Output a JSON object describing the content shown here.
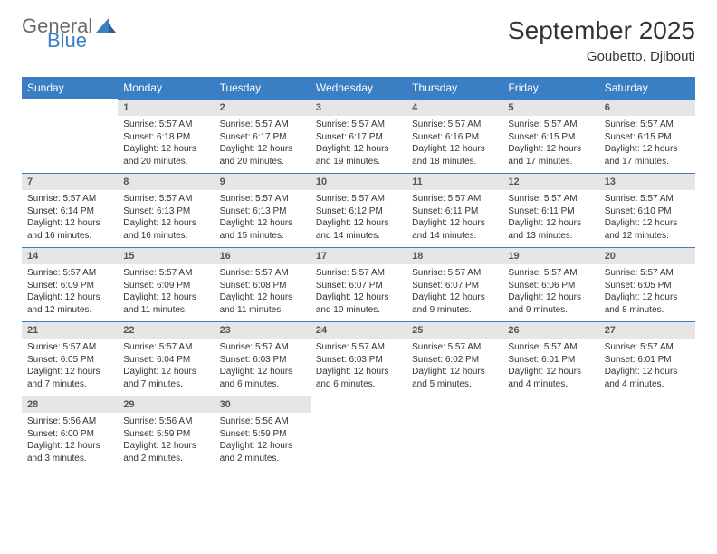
{
  "logo": {
    "text1": "General",
    "text2": "Blue",
    "gray": "#6b6b6b",
    "blue": "#3a7fc4"
  },
  "title": "September 2025",
  "location": "Goubetto, Djibouti",
  "colors": {
    "header_bg": "#3a7fc4",
    "header_fg": "#ffffff",
    "daynum_bg": "#e6e6e6",
    "daynum_fg": "#555555",
    "rule": "#3a7fc4",
    "body_bg": "#ffffff",
    "text": "#333333"
  },
  "weekdays": [
    "Sunday",
    "Monday",
    "Tuesday",
    "Wednesday",
    "Thursday",
    "Friday",
    "Saturday"
  ],
  "weeks": [
    [
      null,
      {
        "n": "1",
        "sr": "5:57 AM",
        "ss": "6:18 PM",
        "dl": "12 hours and 20 minutes."
      },
      {
        "n": "2",
        "sr": "5:57 AM",
        "ss": "6:17 PM",
        "dl": "12 hours and 20 minutes."
      },
      {
        "n": "3",
        "sr": "5:57 AM",
        "ss": "6:17 PM",
        "dl": "12 hours and 19 minutes."
      },
      {
        "n": "4",
        "sr": "5:57 AM",
        "ss": "6:16 PM",
        "dl": "12 hours and 18 minutes."
      },
      {
        "n": "5",
        "sr": "5:57 AM",
        "ss": "6:15 PM",
        "dl": "12 hours and 17 minutes."
      },
      {
        "n": "6",
        "sr": "5:57 AM",
        "ss": "6:15 PM",
        "dl": "12 hours and 17 minutes."
      }
    ],
    [
      {
        "n": "7",
        "sr": "5:57 AM",
        "ss": "6:14 PM",
        "dl": "12 hours and 16 minutes."
      },
      {
        "n": "8",
        "sr": "5:57 AM",
        "ss": "6:13 PM",
        "dl": "12 hours and 16 minutes."
      },
      {
        "n": "9",
        "sr": "5:57 AM",
        "ss": "6:13 PM",
        "dl": "12 hours and 15 minutes."
      },
      {
        "n": "10",
        "sr": "5:57 AM",
        "ss": "6:12 PM",
        "dl": "12 hours and 14 minutes."
      },
      {
        "n": "11",
        "sr": "5:57 AM",
        "ss": "6:11 PM",
        "dl": "12 hours and 14 minutes."
      },
      {
        "n": "12",
        "sr": "5:57 AM",
        "ss": "6:11 PM",
        "dl": "12 hours and 13 minutes."
      },
      {
        "n": "13",
        "sr": "5:57 AM",
        "ss": "6:10 PM",
        "dl": "12 hours and 12 minutes."
      }
    ],
    [
      {
        "n": "14",
        "sr": "5:57 AM",
        "ss": "6:09 PM",
        "dl": "12 hours and 12 minutes."
      },
      {
        "n": "15",
        "sr": "5:57 AM",
        "ss": "6:09 PM",
        "dl": "12 hours and 11 minutes."
      },
      {
        "n": "16",
        "sr": "5:57 AM",
        "ss": "6:08 PM",
        "dl": "12 hours and 11 minutes."
      },
      {
        "n": "17",
        "sr": "5:57 AM",
        "ss": "6:07 PM",
        "dl": "12 hours and 10 minutes."
      },
      {
        "n": "18",
        "sr": "5:57 AM",
        "ss": "6:07 PM",
        "dl": "12 hours and 9 minutes."
      },
      {
        "n": "19",
        "sr": "5:57 AM",
        "ss": "6:06 PM",
        "dl": "12 hours and 9 minutes."
      },
      {
        "n": "20",
        "sr": "5:57 AM",
        "ss": "6:05 PM",
        "dl": "12 hours and 8 minutes."
      }
    ],
    [
      {
        "n": "21",
        "sr": "5:57 AM",
        "ss": "6:05 PM",
        "dl": "12 hours and 7 minutes."
      },
      {
        "n": "22",
        "sr": "5:57 AM",
        "ss": "6:04 PM",
        "dl": "12 hours and 7 minutes."
      },
      {
        "n": "23",
        "sr": "5:57 AM",
        "ss": "6:03 PM",
        "dl": "12 hours and 6 minutes."
      },
      {
        "n": "24",
        "sr": "5:57 AM",
        "ss": "6:03 PM",
        "dl": "12 hours and 6 minutes."
      },
      {
        "n": "25",
        "sr": "5:57 AM",
        "ss": "6:02 PM",
        "dl": "12 hours and 5 minutes."
      },
      {
        "n": "26",
        "sr": "5:57 AM",
        "ss": "6:01 PM",
        "dl": "12 hours and 4 minutes."
      },
      {
        "n": "27",
        "sr": "5:57 AM",
        "ss": "6:01 PM",
        "dl": "12 hours and 4 minutes."
      }
    ],
    [
      {
        "n": "28",
        "sr": "5:56 AM",
        "ss": "6:00 PM",
        "dl": "12 hours and 3 minutes."
      },
      {
        "n": "29",
        "sr": "5:56 AM",
        "ss": "5:59 PM",
        "dl": "12 hours and 2 minutes."
      },
      {
        "n": "30",
        "sr": "5:56 AM",
        "ss": "5:59 PM",
        "dl": "12 hours and 2 minutes."
      },
      null,
      null,
      null,
      null
    ]
  ],
  "labels": {
    "sunrise": "Sunrise:",
    "sunset": "Sunset:",
    "daylight": "Daylight:"
  }
}
